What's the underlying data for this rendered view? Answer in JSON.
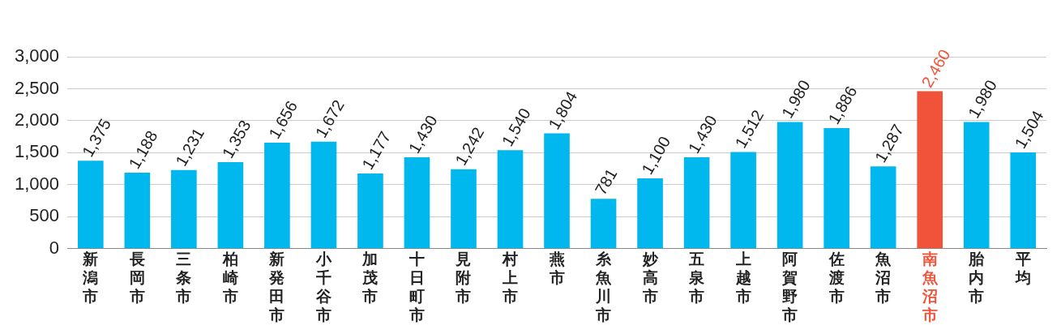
{
  "chart_data": {
    "type": "bar",
    "categories": [
      "新潟市",
      "長岡市",
      "三条市",
      "柏崎市",
      "新発田市",
      "小千谷市",
      "加茂市",
      "十日町市",
      "見附市",
      "村上市",
      "燕市",
      "糸魚川市",
      "妙高市",
      "五泉市",
      "上越市",
      "阿賀野市",
      "佐渡市",
      "魚沼市",
      "南魚沼市",
      "胎内市",
      "平均"
    ],
    "values": [
      1375,
      1188,
      1231,
      1353,
      1656,
      1672,
      1177,
      1430,
      1242,
      1540,
      1804,
      781,
      1100,
      1430,
      1512,
      1980,
      1886,
      1287,
      2460,
      1980,
      1504
    ],
    "colors": [
      "#00b8ee",
      "#00b8ee",
      "#00b8ee",
      "#00b8ee",
      "#00b8ee",
      "#00b8ee",
      "#00b8ee",
      "#00b8ee",
      "#00b8ee",
      "#00b8ee",
      "#00b8ee",
      "#00b8ee",
      "#00b8ee",
      "#00b8ee",
      "#00b8ee",
      "#00b8ee",
      "#00b8ee",
      "#00b8ee",
      "#f0533a",
      "#00b8ee",
      "#00b8ee"
    ],
    "ylim": [
      0,
      3000
    ],
    "yticks": [
      {
        "value": 0,
        "label": "0"
      },
      {
        "value": 500,
        "label": "500"
      },
      {
        "value": 1000,
        "label": "1,000"
      },
      {
        "value": 1500,
        "label": "1,500"
      },
      {
        "value": 2000,
        "label": "2,000"
      },
      {
        "value": 2500,
        "label": "2,500"
      },
      {
        "value": 3000,
        "label": "3,000"
      }
    ],
    "value_labels": [
      "1,375",
      "1,188",
      "1,231",
      "1,353",
      "1,656",
      "1,672",
      "1,177",
      "1,430",
      "1,242",
      "1,540",
      "1,804",
      "781",
      "1,100",
      "1,430",
      "1,512",
      "1,980",
      "1,886",
      "1,287",
      "2,460",
      "1,980",
      "1,504"
    ],
    "grid": "y",
    "legend": false
  }
}
